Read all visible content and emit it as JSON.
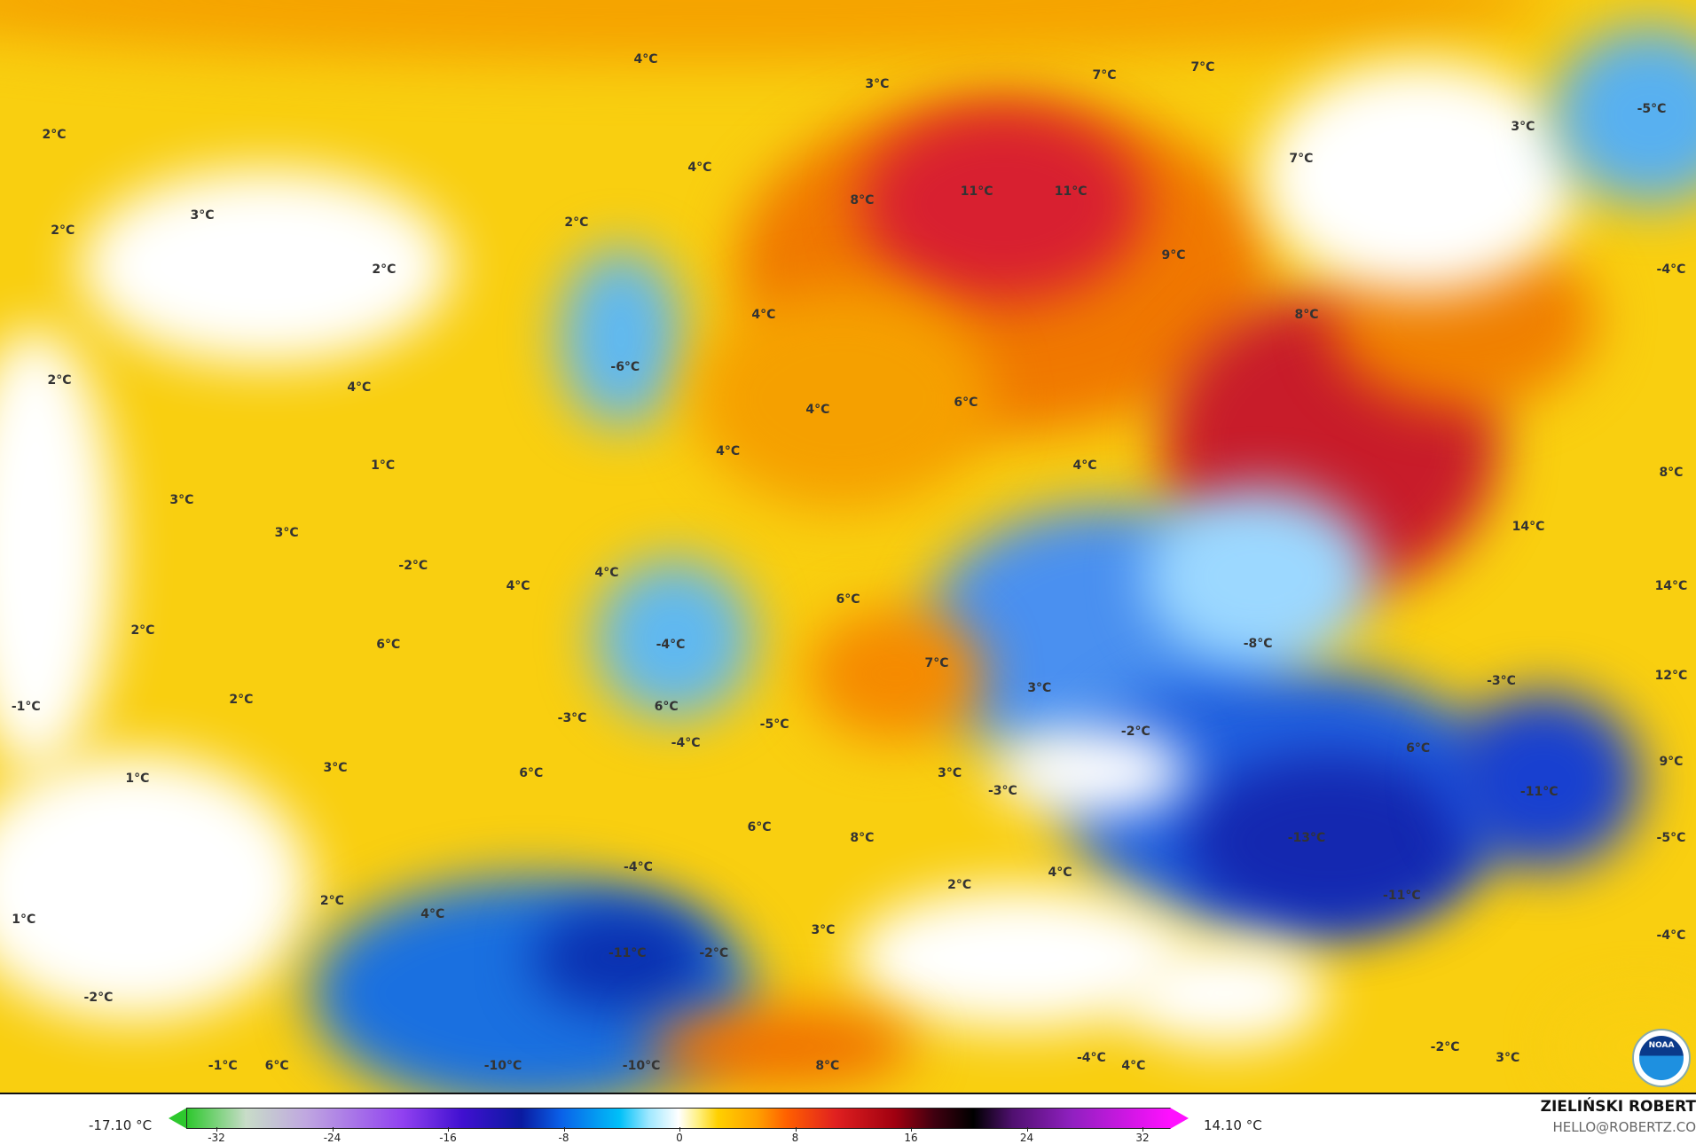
{
  "map": {
    "labels": [
      "4°C",
      "3°C",
      "7°C",
      "7°C",
      "2°C",
      "4°C",
      "11°C",
      "11°C",
      "8°C",
      "7°C",
      "3°C",
      "-5°C",
      "3°C",
      "2°C",
      "2°C",
      "2°C",
      "9°C",
      "-4°C",
      "4°C",
      "8°C",
      "-6°C",
      "2°C",
      "4°C",
      "6°C",
      "4°C",
      "4°C",
      "1°C",
      "4°C",
      "8°C",
      "3°C",
      "3°C",
      "14°C",
      "-2°C",
      "4°C",
      "4°C",
      "14°C",
      "6°C",
      "2°C",
      "-8°C",
      "-4°C",
      "6°C",
      "7°C",
      "-3°C",
      "12°C",
      "3°C",
      "2°C",
      "-1°C",
      "6°C",
      "-3°C",
      "-5°C",
      "-2°C",
      "-4°C",
      "6°C",
      "9°C",
      "3°C",
      "6°C",
      "3°C",
      "1°C",
      "-3°C",
      "-11°C",
      "6°C",
      "8°C",
      "-13°C",
      "-5°C",
      "4°C",
      "-4°C",
      "2°C",
      "-11°C",
      "2°C",
      "4°C",
      "1°C",
      "3°C",
      "-4°C",
      "-11°C",
      "-2°C",
      "-2°C",
      "-2°C",
      "3°C",
      "-1°C",
      "6°C",
      "-10°C",
      "-10°C",
      "8°C",
      "-4°C",
      "4°C"
    ],
    "logo_text": "NOAA"
  },
  "colorbar": {
    "min_label": "-17.10 °C",
    "max_label": "14.10 °C",
    "ticks": [
      "-32",
      "-24",
      "-16",
      "-8",
      "0",
      "8",
      "16",
      "24",
      "32"
    ],
    "range": [
      -32,
      32
    ]
  },
  "credits": {
    "author": "ZIELIŃSKI ROBERT",
    "email": "HELLO@ROBERTZ.CO"
  }
}
